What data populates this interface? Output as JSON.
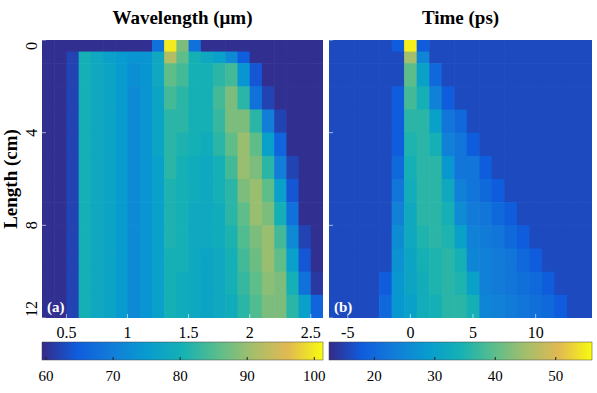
{
  "chart_data": [
    {
      "type": "heatmap",
      "title": "Wavelength (μm)",
      "ylabel": "Length (cm)",
      "panel": "(a)",
      "xlim": [
        0.3,
        2.6
      ],
      "ylim": [
        0,
        12
      ],
      "xticks": [
        0.5,
        1,
        1.5,
        2,
        2.5
      ],
      "yticks": [
        0,
        4,
        8,
        12
      ],
      "tick_labels": true,
      "grid": false,
      "x": [
        0.3,
        0.4,
        0.5,
        0.6,
        0.7,
        0.8,
        0.9,
        1.0,
        1.1,
        1.2,
        1.3,
        1.4,
        1.5,
        1.6,
        1.7,
        1.8,
        1.9,
        2.0,
        2.1,
        2.2,
        2.3,
        2.4,
        2.5,
        2.6
      ],
      "y": [
        0,
        0.5,
        1,
        2,
        3,
        4,
        5,
        6,
        7,
        8,
        9,
        10,
        11,
        12
      ],
      "z": [
        [
          60,
          60,
          60,
          60,
          60,
          60,
          60,
          60,
          60,
          68,
          100,
          88,
          68,
          60,
          60,
          60,
          60,
          60,
          60,
          60,
          60,
          60,
          60
        ],
        [
          60,
          60,
          62,
          80,
          78,
          76,
          75,
          74,
          74,
          78,
          92,
          86,
          80,
          78,
          76,
          72,
          65,
          60,
          60,
          60,
          60,
          60,
          60
        ],
        [
          60,
          60,
          62,
          80,
          78,
          77,
          75,
          73,
          74,
          78,
          86,
          84,
          80,
          80,
          82,
          84,
          74,
          64,
          60,
          60,
          60,
          60,
          60
        ],
        [
          60,
          60,
          62,
          80,
          78,
          77,
          75,
          72,
          74,
          77,
          84,
          82,
          80,
          80,
          84,
          88,
          82,
          68,
          62,
          60,
          60,
          60,
          60
        ],
        [
          60,
          60,
          62,
          80,
          78,
          77,
          75,
          72,
          74,
          77,
          82,
          82,
          80,
          80,
          83,
          88,
          88,
          82,
          70,
          62,
          60,
          60,
          60
        ],
        [
          60,
          60,
          62,
          80,
          78,
          77,
          75,
          72,
          74,
          77,
          82,
          81,
          80,
          79,
          82,
          86,
          90,
          86,
          76,
          66,
          60,
          60,
          60
        ],
        [
          60,
          60,
          62,
          80,
          78,
          77,
          75,
          72,
          74,
          76,
          82,
          80,
          79,
          78,
          80,
          84,
          90,
          88,
          82,
          70,
          62,
          60,
          60
        ],
        [
          60,
          60,
          62,
          80,
          78,
          77,
          75,
          72,
          74,
          76,
          81,
          80,
          79,
          78,
          80,
          82,
          88,
          90,
          86,
          76,
          64,
          60,
          60
        ],
        [
          60,
          60,
          62,
          80,
          78,
          77,
          75,
          72,
          74,
          76,
          81,
          80,
          78,
          78,
          79,
          82,
          86,
          90,
          88,
          80,
          68,
          60,
          60
        ],
        [
          60,
          60,
          62,
          80,
          78,
          77,
          75,
          72,
          74,
          76,
          81,
          80,
          78,
          78,
          79,
          81,
          85,
          88,
          90,
          84,
          72,
          62,
          60
        ],
        [
          60,
          60,
          62,
          80,
          78,
          77,
          75,
          72,
          74,
          76,
          80,
          80,
          78,
          77,
          78,
          80,
          84,
          87,
          90,
          86,
          76,
          64,
          60
        ],
        [
          60,
          60,
          62,
          80,
          78,
          77,
          75,
          72,
          74,
          76,
          80,
          79,
          78,
          77,
          78,
          80,
          83,
          86,
          89,
          88,
          80,
          68,
          61
        ],
        [
          60,
          60,
          62,
          80,
          78,
          77,
          75,
          72,
          74,
          76,
          80,
          79,
          78,
          77,
          78,
          79,
          82,
          85,
          88,
          88,
          82,
          76,
          66
        ]
      ],
      "colorbar_lim": [
        59.4,
        101.3
      ],
      "colorbar_ticks": [
        60,
        70,
        80,
        90,
        100
      ]
    },
    {
      "type": "heatmap",
      "title": "Time (ps)",
      "panel": "(b)",
      "xlim": [
        -6.5,
        14.5
      ],
      "ylim": [
        0,
        12
      ],
      "xticks": [
        -5,
        0,
        5,
        10
      ],
      "yticks": [
        0,
        4,
        8,
        12
      ],
      "tick_labels": "x",
      "grid": false,
      "x": [
        -6.5,
        -5.5,
        -4.5,
        -3.5,
        -2.5,
        -1.5,
        -0.5,
        0.5,
        1.5,
        2.5,
        3.5,
        4.5,
        5.5,
        6.5,
        7.5,
        8.5,
        9.5,
        10.5,
        11.5,
        12.5,
        13.5,
        14.5
      ],
      "y": [
        0,
        0.5,
        1,
        2,
        3,
        4,
        5,
        6,
        7,
        8,
        9,
        10,
        11,
        12
      ],
      "z": [
        [
          16,
          16,
          16,
          16,
          16,
          18,
          55,
          18,
          16,
          16,
          16,
          16,
          16,
          16,
          16,
          16,
          16,
          16,
          16,
          16,
          16
        ],
        [
          16,
          16,
          16,
          16,
          16,
          16,
          45,
          25,
          16,
          16,
          16,
          16,
          16,
          16,
          16,
          16,
          16,
          16,
          16,
          16,
          16
        ],
        [
          16,
          16,
          16,
          16,
          16,
          16,
          40,
          30,
          20,
          16,
          16,
          16,
          16,
          16,
          16,
          16,
          16,
          16,
          16,
          16,
          16
        ],
        [
          16,
          16,
          16,
          16,
          16,
          18,
          38,
          34,
          24,
          18,
          16,
          16,
          16,
          16,
          16,
          16,
          16,
          16,
          16,
          16,
          16
        ],
        [
          16,
          16,
          16,
          16,
          16,
          18,
          36,
          36,
          30,
          22,
          20,
          16,
          16,
          16,
          16,
          16,
          16,
          16,
          16,
          16,
          16
        ],
        [
          16,
          16,
          16,
          16,
          16,
          18,
          35,
          36,
          34,
          24,
          22,
          18,
          16,
          16,
          16,
          16,
          16,
          16,
          16,
          16,
          16
        ],
        [
          16,
          16,
          16,
          16,
          16,
          20,
          34,
          36,
          36,
          28,
          22,
          22,
          18,
          16,
          16,
          16,
          16,
          16,
          16,
          16,
          16
        ],
        [
          16,
          16,
          16,
          16,
          16,
          22,
          33,
          36,
          36,
          32,
          24,
          22,
          20,
          18,
          16,
          16,
          16,
          16,
          16,
          16,
          16
        ],
        [
          16,
          16,
          16,
          16,
          16,
          24,
          32,
          36,
          36,
          34,
          26,
          23,
          22,
          20,
          18,
          16,
          16,
          16,
          16,
          16,
          16
        ],
        [
          16,
          16,
          16,
          16,
          16,
          26,
          32,
          35,
          36,
          35,
          30,
          24,
          23,
          22,
          20,
          18,
          16,
          16,
          16,
          16,
          16
        ],
        [
          16,
          16,
          16,
          16,
          16,
          27,
          31,
          34,
          35,
          36,
          34,
          25,
          24,
          23,
          22,
          20,
          18,
          16,
          16,
          16,
          16
        ],
        [
          16,
          16,
          16,
          16,
          18,
          28,
          31,
          33,
          35,
          36,
          35,
          30,
          24,
          23,
          22,
          21,
          20,
          18,
          16,
          16,
          16
        ],
        [
          16,
          16,
          16,
          16,
          20,
          28,
          30,
          33,
          34,
          36,
          36,
          34,
          25,
          24,
          23,
          22,
          21,
          20,
          18,
          16,
          16
        ]
      ],
      "colorbar_lim": [
        12.5,
        56
      ],
      "colorbar_ticks": [
        20,
        30,
        40,
        50
      ]
    }
  ]
}
